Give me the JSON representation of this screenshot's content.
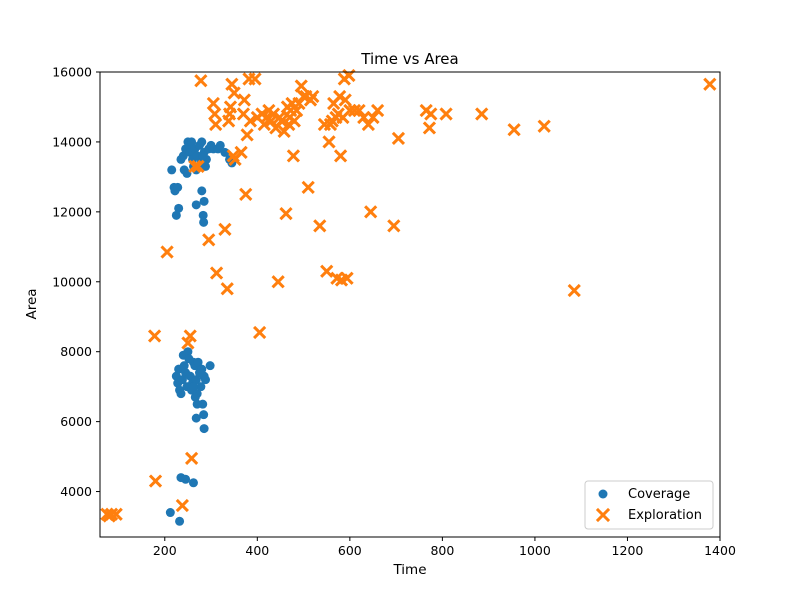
{
  "chart_data": {
    "type": "scatter",
    "title": "Time vs Area",
    "xlabel": "Time",
    "ylabel": "Area",
    "xlim": [
      60,
      1400
    ],
    "ylim": [
      2700,
      16000
    ],
    "xticks": [
      200,
      400,
      600,
      800,
      1000,
      1200,
      1400
    ],
    "yticks": [
      4000,
      6000,
      8000,
      10000,
      12000,
      14000,
      16000
    ],
    "grid": false,
    "legend_position": "lower-right",
    "series": [
      {
        "name": "Coverage",
        "color": "#1f77b4",
        "marker": "circle",
        "points": [
          [
            215,
            13200
          ],
          [
            220,
            12700
          ],
          [
            222,
            12600
          ],
          [
            228,
            12700
          ],
          [
            225,
            11900
          ],
          [
            230,
            12100
          ],
          [
            240,
            13600
          ],
          [
            245,
            13800
          ],
          [
            250,
            14000
          ],
          [
            252,
            13900
          ],
          [
            255,
            13700
          ],
          [
            258,
            14000
          ],
          [
            260,
            13500
          ],
          [
            262,
            13300
          ],
          [
            265,
            13800
          ],
          [
            270,
            13600
          ],
          [
            275,
            13900
          ],
          [
            278,
            13400
          ],
          [
            280,
            14000
          ],
          [
            285,
            13700
          ],
          [
            288,
            13300
          ],
          [
            290,
            13500
          ],
          [
            295,
            13800
          ],
          [
            300,
            13900
          ],
          [
            305,
            13800
          ],
          [
            315,
            13800
          ],
          [
            320,
            13900
          ],
          [
            330,
            13700
          ],
          [
            340,
            13500
          ],
          [
            345,
            13400
          ],
          [
            235,
            13500
          ],
          [
            242,
            13200
          ],
          [
            248,
            13100
          ],
          [
            268,
            13200
          ],
          [
            282,
            13600
          ],
          [
            268,
            12200
          ],
          [
            280,
            12600
          ],
          [
            285,
            12300
          ],
          [
            283,
            11900
          ],
          [
            284,
            11700
          ],
          [
            225,
            7300
          ],
          [
            228,
            7100
          ],
          [
            230,
            7500
          ],
          [
            232,
            6900
          ],
          [
            235,
            6800
          ],
          [
            238,
            7200
          ],
          [
            240,
            7900
          ],
          [
            242,
            7600
          ],
          [
            245,
            7400
          ],
          [
            248,
            7000
          ],
          [
            250,
            8000
          ],
          [
            252,
            7800
          ],
          [
            255,
            7300
          ],
          [
            258,
            6900
          ],
          [
            260,
            7100
          ],
          [
            262,
            7700
          ],
          [
            265,
            7600
          ],
          [
            268,
            7200
          ],
          [
            270,
            6800
          ],
          [
            272,
            7700
          ],
          [
            275,
            7400
          ],
          [
            278,
            7000
          ],
          [
            280,
            7500
          ],
          [
            282,
            6500
          ],
          [
            285,
            7300
          ],
          [
            288,
            7200
          ],
          [
            298,
            7600
          ],
          [
            262,
            7000
          ],
          [
            266,
            6700
          ],
          [
            270,
            6500
          ],
          [
            268,
            6100
          ],
          [
            284,
            6200
          ],
          [
            285,
            5800
          ],
          [
            235,
            4400
          ],
          [
            245,
            4350
          ],
          [
            262,
            4250
          ],
          [
            212,
            3400
          ],
          [
            232,
            3150
          ]
        ]
      },
      {
        "name": "Exploration",
        "color": "#ff7f0e",
        "marker": "x",
        "points": [
          [
            75,
            3350
          ],
          [
            80,
            3300
          ],
          [
            85,
            3350
          ],
          [
            95,
            3350
          ],
          [
            178,
            8450
          ],
          [
            180,
            4300
          ],
          [
            205,
            10850
          ],
          [
            238,
            3600
          ],
          [
            250,
            8250
          ],
          [
            255,
            8450
          ],
          [
            258,
            4950
          ],
          [
            265,
            13300
          ],
          [
            272,
            13300
          ],
          [
            278,
            15750
          ],
          [
            295,
            11200
          ],
          [
            305,
            15100
          ],
          [
            308,
            14800
          ],
          [
            310,
            14500
          ],
          [
            312,
            10250
          ],
          [
            330,
            11500
          ],
          [
            335,
            9800
          ],
          [
            338,
            14600
          ],
          [
            340,
            14800
          ],
          [
            342,
            15000
          ],
          [
            345,
            15650
          ],
          [
            348,
            13600
          ],
          [
            350,
            15400
          ],
          [
            352,
            13500
          ],
          [
            365,
            13700
          ],
          [
            370,
            14800
          ],
          [
            372,
            15200
          ],
          [
            375,
            12500
          ],
          [
            378,
            14200
          ],
          [
            382,
            15800
          ],
          [
            385,
            14600
          ],
          [
            395,
            15800
          ],
          [
            400,
            14700
          ],
          [
            405,
            8550
          ],
          [
            410,
            14800
          ],
          [
            415,
            14500
          ],
          [
            420,
            14700
          ],
          [
            425,
            14900
          ],
          [
            430,
            14600
          ],
          [
            435,
            14800
          ],
          [
            440,
            14400
          ],
          [
            445,
            10000
          ],
          [
            448,
            14700
          ],
          [
            452,
            14600
          ],
          [
            458,
            14300
          ],
          [
            462,
            11950
          ],
          [
            465,
            15000
          ],
          [
            468,
            14500
          ],
          [
            470,
            14700
          ],
          [
            472,
            14900
          ],
          [
            475,
            15100
          ],
          [
            478,
            13600
          ],
          [
            480,
            14600
          ],
          [
            485,
            14900
          ],
          [
            490,
            15100
          ],
          [
            495,
            15600
          ],
          [
            500,
            15300
          ],
          [
            505,
            15300
          ],
          [
            510,
            12700
          ],
          [
            515,
            15200
          ],
          [
            520,
            15300
          ],
          [
            535,
            11600
          ],
          [
            545,
            14500
          ],
          [
            550,
            10300
          ],
          [
            555,
            14000
          ],
          [
            558,
            14500
          ],
          [
            562,
            14600
          ],
          [
            565,
            15100
          ],
          [
            570,
            14700
          ],
          [
            572,
            10100
          ],
          [
            575,
            14800
          ],
          [
            578,
            15300
          ],
          [
            580,
            13600
          ],
          [
            582,
            10050
          ],
          [
            585,
            14700
          ],
          [
            588,
            15800
          ],
          [
            590,
            15200
          ],
          [
            594,
            10100
          ],
          [
            598,
            15900
          ],
          [
            600,
            14900
          ],
          [
            610,
            14900
          ],
          [
            620,
            14900
          ],
          [
            630,
            14700
          ],
          [
            640,
            14500
          ],
          [
            645,
            12000
          ],
          [
            650,
            14700
          ],
          [
            660,
            14900
          ],
          [
            695,
            11600
          ],
          [
            705,
            14100
          ],
          [
            765,
            14900
          ],
          [
            772,
            14400
          ],
          [
            775,
            14800
          ],
          [
            808,
            14800
          ],
          [
            885,
            14800
          ],
          [
            955,
            14350
          ],
          [
            1020,
            14450
          ],
          [
            1085,
            9750
          ],
          [
            1378,
            15650
          ]
        ]
      }
    ]
  }
}
